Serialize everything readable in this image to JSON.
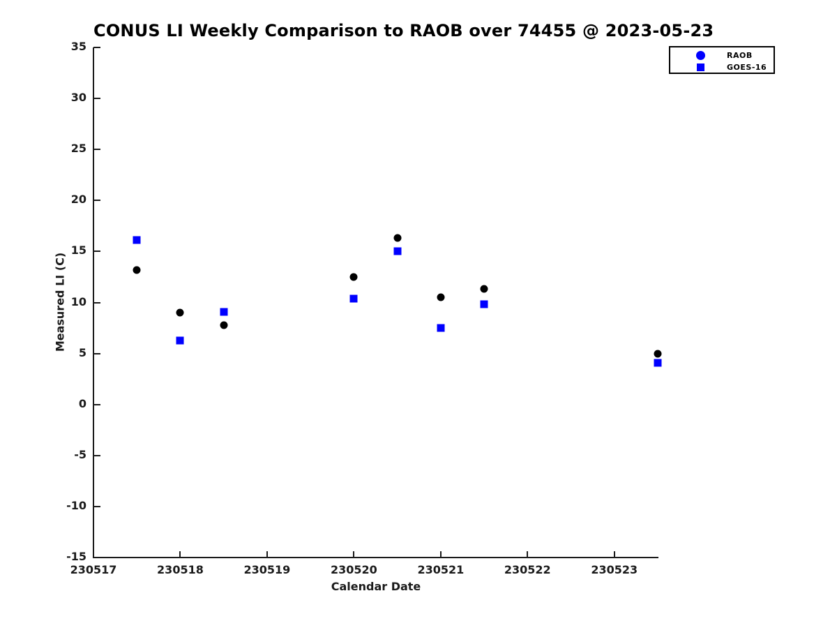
{
  "title": "CONUS LI Weekly Comparison to RAOB over 74455 @ 2023-05-23",
  "chart_data": {
    "type": "scatter",
    "title": "CONUS LI Weekly Comparison to RAOB over 74455 @ 2023-05-23",
    "xlabel": "Calendar Date",
    "ylabel": "Measured LI (C)",
    "xlim": [
      230517,
      230523.5
    ],
    "ylim": [
      -15,
      35
    ],
    "x_ticks": [
      230517,
      230518,
      230519,
      230520,
      230521,
      230522,
      230523
    ],
    "y_ticks": [
      35,
      30,
      25,
      20,
      15,
      10,
      5,
      0,
      -5,
      -10,
      -15
    ],
    "grid": false,
    "legend_position": "outside-top-right",
    "series": [
      {
        "name": "RAOB",
        "marker": "circle",
        "marker_color": "#000000",
        "legend_marker_color": "#0000ff",
        "points": [
          [
            230517.5,
            13.2
          ],
          [
            230518.0,
            9.0
          ],
          [
            230518.5,
            7.8
          ],
          [
            230520.0,
            12.5
          ],
          [
            230520.5,
            16.3
          ],
          [
            230521.0,
            10.5
          ],
          [
            230521.5,
            11.3
          ],
          [
            230523.5,
            5.0
          ]
        ]
      },
      {
        "name": "GOES-16",
        "marker": "square",
        "marker_color": "#0000ff",
        "legend_marker_color": "#0000ff",
        "points": [
          [
            230517.5,
            16.1
          ],
          [
            230518.0,
            6.3
          ],
          [
            230518.5,
            9.1
          ],
          [
            230520.0,
            10.4
          ],
          [
            230520.5,
            15.0
          ],
          [
            230521.0,
            7.5
          ],
          [
            230521.5,
            9.8
          ],
          [
            230523.5,
            4.1
          ]
        ]
      }
    ]
  },
  "legend": {
    "items": [
      {
        "label": "RAOB",
        "marker": "circle",
        "color": "#0000ff"
      },
      {
        "label": "GOES-16",
        "marker": "square",
        "color": "#0000ff"
      }
    ]
  },
  "colors": {
    "axis": "#1a1a1a",
    "raob_point": "#000000",
    "goes16_point": "#0000ff",
    "background": "#ffffff"
  }
}
